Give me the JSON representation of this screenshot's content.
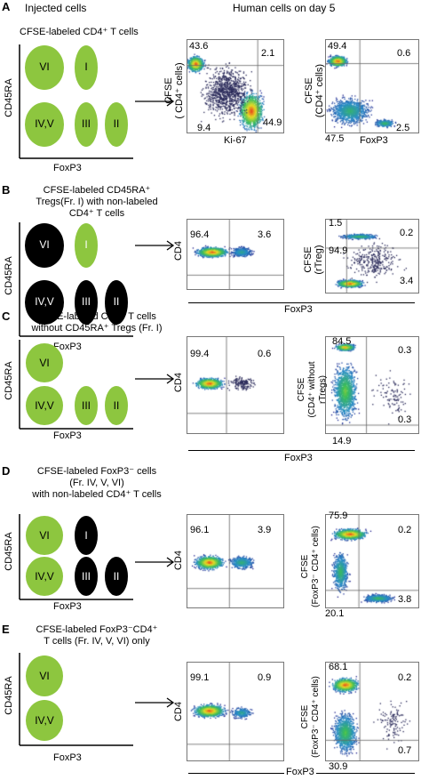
{
  "header": {
    "injected": "Injected cells",
    "human_day5": "Human cells on day 5",
    "panel_a": "A"
  },
  "panelA": {
    "title": "CFSE-labeled CD4⁺ T cells",
    "y_axis": "CD45RA",
    "x_axis": "FoxP3",
    "circles": [
      "VI",
      "I",
      "IV,V",
      "III",
      "II"
    ],
    "plot1": {
      "ylabel_line1": "CFSE",
      "ylabel_line2": "( CD4⁺ cells)",
      "xlabel": "Ki-67",
      "tl": "43.6",
      "tr": "2.1",
      "bl": "9.4",
      "br": "44.9"
    },
    "plot2": {
      "ylabel_line1": "CFSE",
      "ylabel_line2": "(CD4⁺ cells)",
      "xlabel": "FoxP3",
      "tl": "49.4",
      "tr": "0.6",
      "bl": "47.5",
      "br": "2.5"
    }
  },
  "panelB": {
    "letter": "B",
    "title_l1": "CFSE-labeled CD45RA⁺",
    "title_l2": "Tregs(Fr. I) with non-labeled",
    "title_l3": "CD4⁺ T cells",
    "y_axis": "CD45RA",
    "x_axis": "FoxP3",
    "circles": [
      "VI",
      "I",
      "IV,V",
      "III",
      "II"
    ],
    "plot1": {
      "ylabel": "CD4",
      "tl": "96.4",
      "tr": "3.6"
    },
    "plot2": {
      "ylabel_line1": "CFSE",
      "ylabel_line2": "(rTreg)",
      "tl": "1.5",
      "tr": "0.2",
      "ml": "94.9",
      "br": "3.4"
    },
    "bottom_axis": "FoxP3"
  },
  "panelC": {
    "letter": "C",
    "title_l1": "CFSE-labeled CD4⁺ T cells",
    "title_l2": "without CD45RA⁺ Tregs (Fr. I)",
    "y_axis": "CD45RA",
    "x_axis": "FoxP3",
    "circles": [
      "VI",
      "IV,V",
      "III",
      "II"
    ],
    "plot1": {
      "ylabel": "CD4",
      "tl": "99.4",
      "tr": "0.6"
    },
    "plot2": {
      "ylabel_line1": "CFSE",
      "ylabel_line2": "(CD4⁺ without",
      "ylabel_line3": "rTregs)",
      "tl": "84.5",
      "tr": "0.3",
      "br": "0.3",
      "bl": "14.9"
    },
    "bottom_axis": "FoxP3"
  },
  "panelD": {
    "letter": "D",
    "title_l1": "CFSE-labeled FoxP3⁻ cells",
    "title_l2": "(Fr.  IV, V, VI)",
    "title_l3": "with non-labeled CD4⁺ T cells",
    "y_axis": "CD45RA",
    "x_axis": "FoxP3",
    "circles": [
      "VI",
      "I",
      "IV,V",
      "III",
      "II"
    ],
    "plot1": {
      "ylabel": "CD4",
      "tl": "96.1",
      "tr": "3.9"
    },
    "plot2": {
      "ylabel_line1": "CFSE",
      "ylabel_line2": "(FoxP3⁻ CD4⁺ cells)",
      "tl": "75.9",
      "tr": "0.2",
      "bl": "20.1",
      "br": "3.8"
    }
  },
  "panelE": {
    "letter": "E",
    "title_l1": "CFSE-labeled FoxP3⁻CD4⁺",
    "title_l2": "T cells (Fr. IV, V, VI) only",
    "y_axis": "CD45RA",
    "x_axis": "FoxP3",
    "circles": [
      "VI",
      "IV,V"
    ],
    "plot1": {
      "ylabel": "CD4",
      "tl": "99.1",
      "tr": "0.9"
    },
    "plot2": {
      "ylabel_line1": "CFSE",
      "ylabel_line2": "(FoxP3⁻ CD4⁺ cells)",
      "tl": "68.1",
      "tr": "0.2",
      "br": "0.7",
      "bl": "30.9"
    },
    "bottom_axis": "FoxP3"
  },
  "colors": {
    "labeled": "#8dc63f",
    "unlabeled": "#000000"
  }
}
